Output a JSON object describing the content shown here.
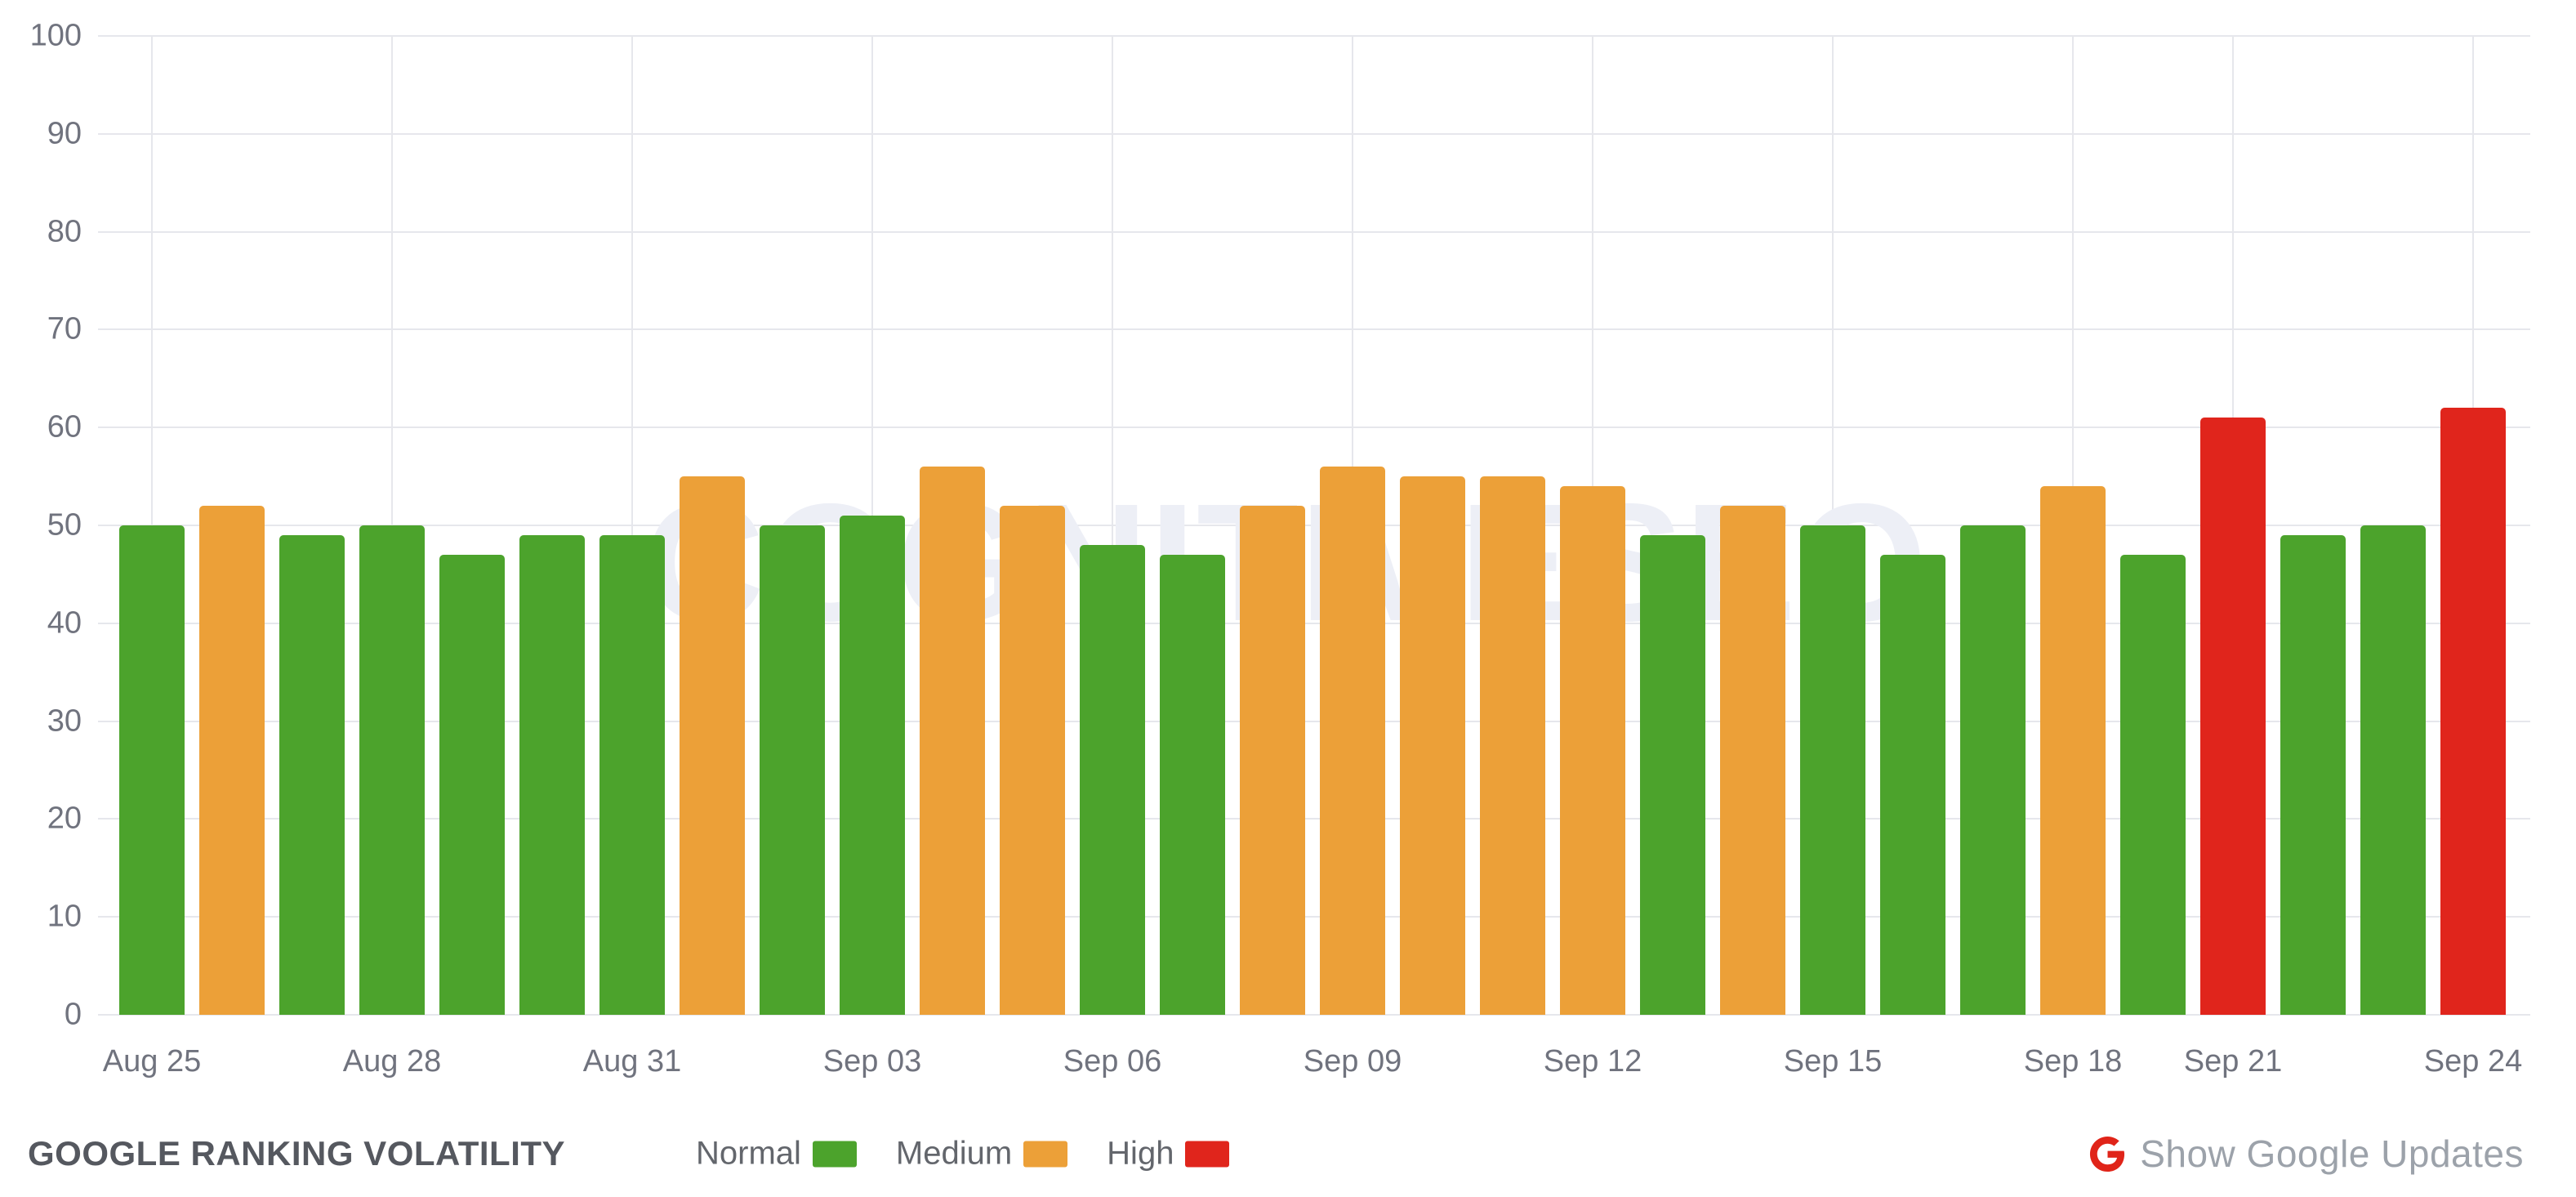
{
  "chart_data": {
    "type": "bar",
    "title": "GOOGLE RANKING VOLATILITY",
    "ylim": [
      0,
      100
    ],
    "y_ticks": [
      0,
      10,
      20,
      30,
      40,
      50,
      60,
      70,
      80,
      90,
      100
    ],
    "grid": true,
    "legend_position": "bottom",
    "x_tick_indices": [
      0,
      3,
      6,
      9,
      12,
      15,
      18,
      21,
      24,
      26,
      29
    ],
    "bars": [
      {
        "date": "Aug 25",
        "value": 50,
        "level": "normal"
      },
      {
        "date": "Aug 26",
        "value": 52,
        "level": "medium"
      },
      {
        "date": "Aug 27",
        "value": 49,
        "level": "normal"
      },
      {
        "date": "Aug 28",
        "value": 50,
        "level": "normal"
      },
      {
        "date": "Aug 29",
        "value": 47,
        "level": "normal"
      },
      {
        "date": "Aug 30",
        "value": 49,
        "level": "normal"
      },
      {
        "date": "Aug 31",
        "value": 49,
        "level": "normal"
      },
      {
        "date": "Sep 01",
        "value": 55,
        "level": "medium"
      },
      {
        "date": "Sep 02",
        "value": 50,
        "level": "normal"
      },
      {
        "date": "Sep 03",
        "value": 51,
        "level": "normal"
      },
      {
        "date": "Sep 04",
        "value": 56,
        "level": "medium"
      },
      {
        "date": "Sep 05",
        "value": 52,
        "level": "medium"
      },
      {
        "date": "Sep 06",
        "value": 48,
        "level": "normal"
      },
      {
        "date": "Sep 07",
        "value": 47,
        "level": "normal"
      },
      {
        "date": "Sep 08",
        "value": 52,
        "level": "medium"
      },
      {
        "date": "Sep 09",
        "value": 56,
        "level": "medium"
      },
      {
        "date": "Sep 10",
        "value": 55,
        "level": "medium"
      },
      {
        "date": "Sep 11",
        "value": 55,
        "level": "medium"
      },
      {
        "date": "Sep 12",
        "value": 54,
        "level": "medium"
      },
      {
        "date": "Sep 13",
        "value": 49,
        "level": "normal"
      },
      {
        "date": "Sep 14",
        "value": 52,
        "level": "medium"
      },
      {
        "date": "Sep 15",
        "value": 50,
        "level": "normal"
      },
      {
        "date": "Sep 16",
        "value": 47,
        "level": "normal"
      },
      {
        "date": "Sep 17",
        "value": 50,
        "level": "normal"
      },
      {
        "date": "Sep 18",
        "value": 54,
        "level": "medium"
      },
      {
        "date": "Sep 19",
        "value": 47,
        "level": "normal"
      },
      {
        "date": "Sep 21",
        "value": 61,
        "level": "high"
      },
      {
        "date": "Sep 22",
        "value": 49,
        "level": "normal"
      },
      {
        "date": "Sep 23",
        "value": 50,
        "level": "normal"
      },
      {
        "date": "Sep 24",
        "value": 62,
        "level": "high"
      }
    ]
  },
  "colors": {
    "normal": "#4CA32C",
    "medium": "#ECA038",
    "high": "#E0251C",
    "gridline": "#E6E7EC",
    "axis_text": "#70737E",
    "title_text": "#55585F",
    "legend_text": "#63666C",
    "updates_text": "#9CA2AA",
    "google_g": "#E02419",
    "watermark": "#EDEFF6"
  },
  "watermark": "COGNITIVESEO",
  "legend": {
    "items": [
      {
        "label": "Normal",
        "level": "normal",
        "color": "#4CA32C"
      },
      {
        "label": "Medium",
        "level": "medium",
        "color": "#ECA038"
      },
      {
        "label": "High",
        "level": "high",
        "color": "#E0251C"
      }
    ]
  },
  "footer": {
    "title": "GOOGLE RANKING VOLATILITY",
    "google_updates_label": "Show Google Updates"
  }
}
